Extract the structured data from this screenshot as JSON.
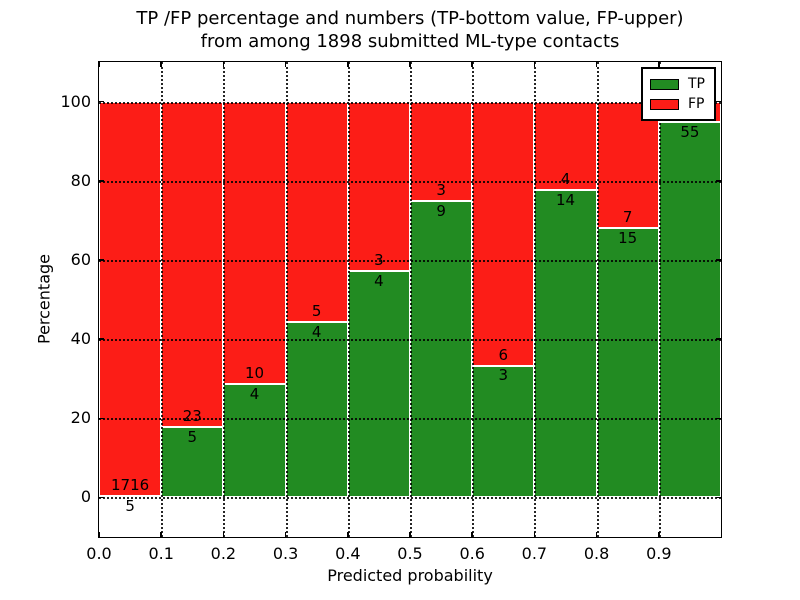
{
  "title": {
    "line1": "TP /FP percentage and numbers (TP-bottom value, FP-upper)",
    "line2": "from among 1898 submitted ML-type contacts"
  },
  "chart_data": {
    "type": "bar",
    "stacked": true,
    "orientation": "vertical",
    "title": "TP /FP percentage and numbers (TP-bottom value, FP-upper) from among 1898 submitted ML-type contacts",
    "total_submitted": 1898,
    "xlabel": "Predicted probability",
    "ylabel": "Percentage",
    "xlim": [
      0.0,
      1.0
    ],
    "ylim": [
      -10,
      110
    ],
    "grid": "dotted, drawn above bars",
    "legend_position": "upper right",
    "x_ticks": [
      {
        "value": 0.0,
        "label": "0.0"
      },
      {
        "value": 0.1,
        "label": "0.1"
      },
      {
        "value": 0.2,
        "label": "0.2"
      },
      {
        "value": 0.3,
        "label": "0.3"
      },
      {
        "value": 0.4,
        "label": "0.4"
      },
      {
        "value": 0.5,
        "label": "0.5"
      },
      {
        "value": 0.6,
        "label": "0.6"
      },
      {
        "value": 0.7,
        "label": "0.7"
      },
      {
        "value": 0.8,
        "label": "0.8"
      },
      {
        "value": 0.9,
        "label": "0.9"
      }
    ],
    "y_ticks": [
      {
        "value": 0,
        "label": "0"
      },
      {
        "value": 20,
        "label": "20"
      },
      {
        "value": 40,
        "label": "40"
      },
      {
        "value": 60,
        "label": "60"
      },
      {
        "value": 80,
        "label": "80"
      },
      {
        "value": 100,
        "label": "100"
      }
    ],
    "x_gridlines": [
      0.1,
      0.2,
      0.3,
      0.4,
      0.5,
      0.6,
      0.7,
      0.8,
      0.9
    ],
    "series": [
      {
        "name": "TP",
        "color": "#228B22"
      },
      {
        "name": "FP",
        "color": "#fc1d17"
      }
    ],
    "bins": [
      {
        "x0": 0.0,
        "x1": 0.1,
        "tp_count": 5,
        "fp_count": 1716,
        "tp_percent": 0.29
      },
      {
        "x0": 0.1,
        "x1": 0.2,
        "tp_count": 5,
        "fp_count": 23,
        "tp_percent": 17.86
      },
      {
        "x0": 0.2,
        "x1": 0.3,
        "tp_count": 4,
        "fp_count": 10,
        "tp_percent": 28.57
      },
      {
        "x0": 0.3,
        "x1": 0.4,
        "tp_count": 4,
        "fp_count": 5,
        "tp_percent": 44.44
      },
      {
        "x0": 0.4,
        "x1": 0.5,
        "tp_count": 4,
        "fp_count": 3,
        "tp_percent": 57.14
      },
      {
        "x0": 0.5,
        "x1": 0.6,
        "tp_count": 9,
        "fp_count": 3,
        "tp_percent": 75.0
      },
      {
        "x0": 0.6,
        "x1": 0.7,
        "tp_count": 3,
        "fp_count": 6,
        "tp_percent": 33.33
      },
      {
        "x0": 0.7,
        "x1": 0.8,
        "tp_count": 14,
        "fp_count": 4,
        "tp_percent": 77.78
      },
      {
        "x0": 0.8,
        "x1": 0.9,
        "tp_count": 15,
        "fp_count": 7,
        "tp_percent": 68.18
      },
      {
        "x0": 0.9,
        "x1": 1.0,
        "tp_count": 55,
        "fp_count": null,
        "tp_percent": 94.83
      }
    ],
    "legend": {
      "entries": [
        {
          "label": "TP",
          "color": "#228B22"
        },
        {
          "label": "FP",
          "color": "#fc1d17"
        }
      ]
    }
  },
  "colors": {
    "tp": "#228B22",
    "fp": "#fc1d17",
    "grid": "#000000",
    "background": "#ffffff"
  }
}
